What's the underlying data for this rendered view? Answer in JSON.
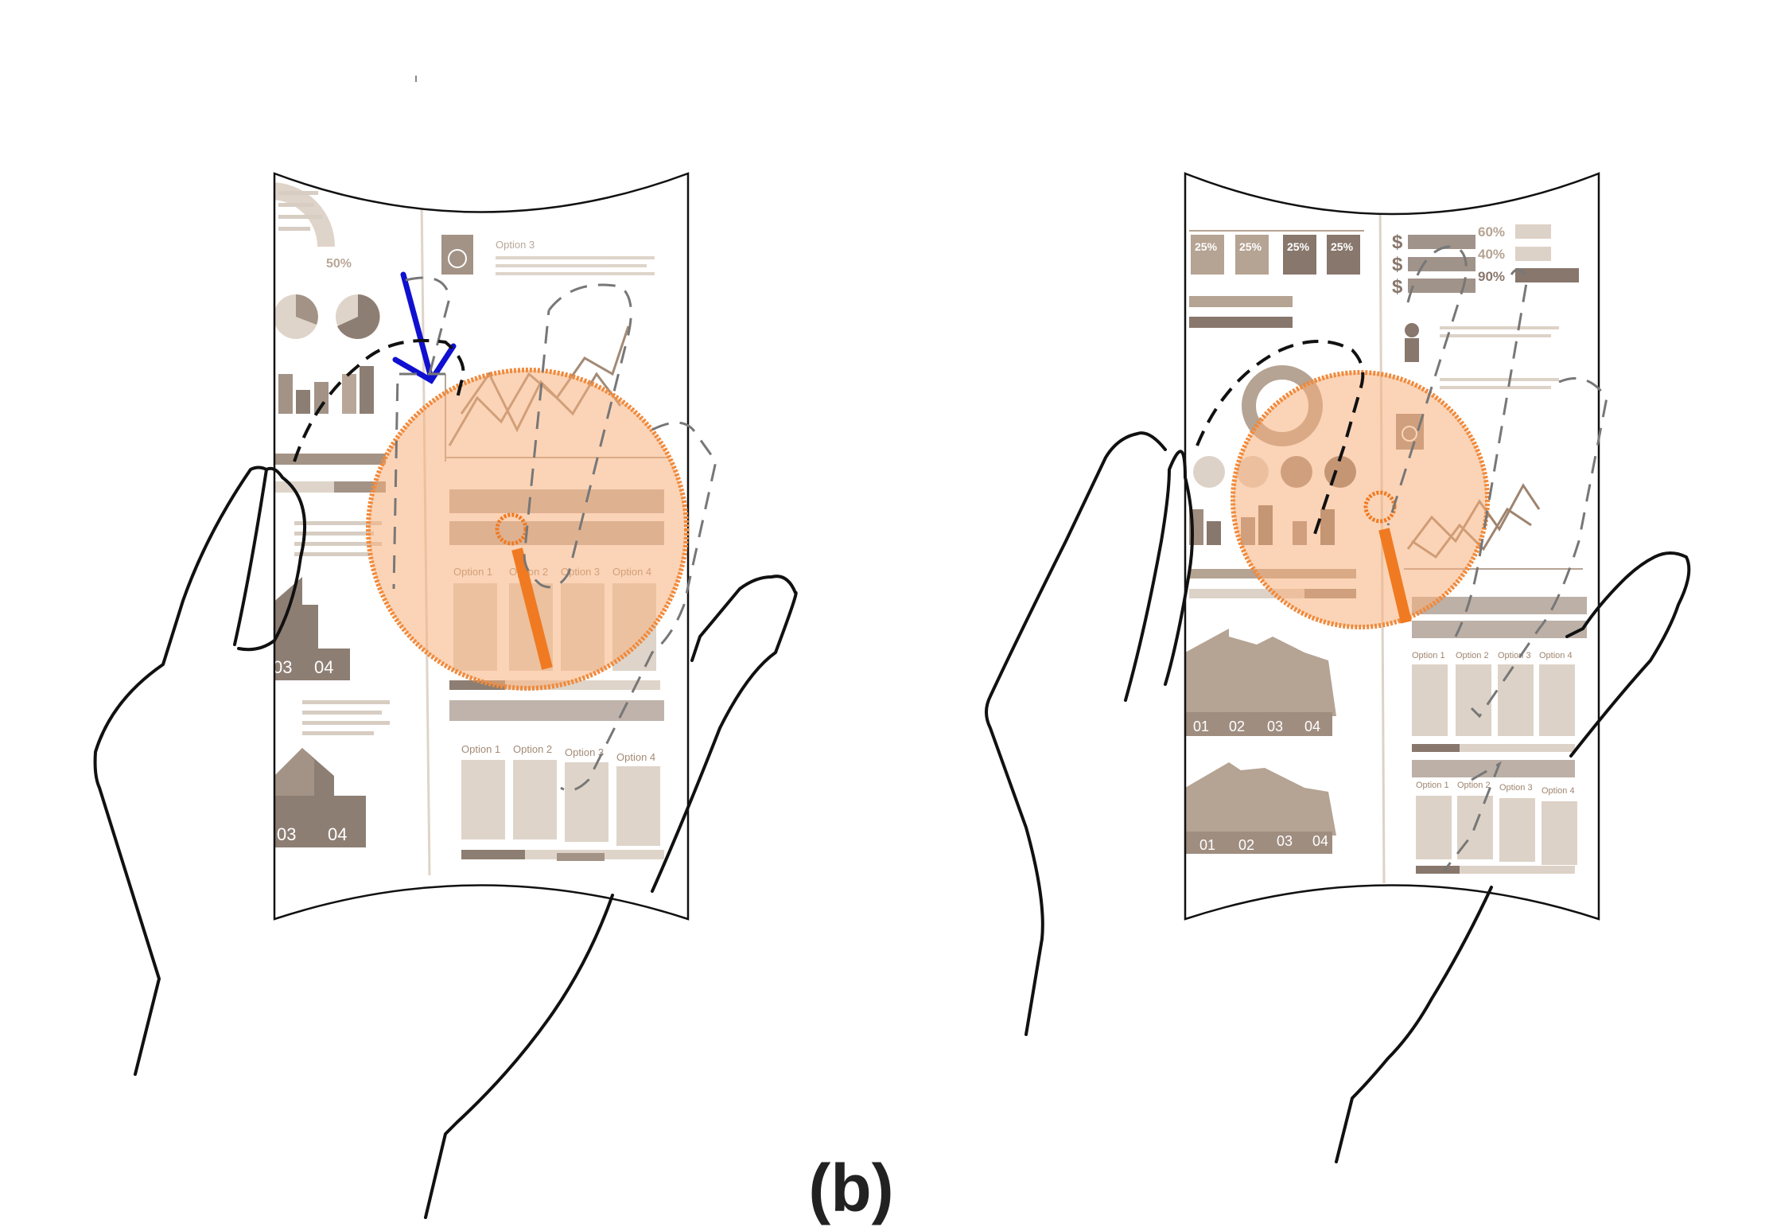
{
  "caption": "(b)",
  "colors": {
    "ink": "#111111",
    "lens": "#f7b07c",
    "lens_stroke": "#f08a3c",
    "handle": "#f07a22",
    "pointer_arrow": "#1010d0",
    "infographic_dark": "#6e5a4c",
    "infographic_mid": "#a58f7c",
    "infographic_light": "#d6c8bb"
  },
  "left_panel": {
    "percent_labels": [
      "50%"
    ],
    "options": [
      "Option 1",
      "Option 2",
      "Option 3",
      "Option 4"
    ],
    "house_numbers": [
      "03",
      "04"
    ],
    "icons": [
      "passport-icon",
      "pie-chart-icon",
      "line-chart-icon",
      "pointer-arrow-icon",
      "magnifier-icon"
    ]
  },
  "right_panel": {
    "percent_boxes": [
      "25%",
      "25%",
      "25%",
      "25%"
    ],
    "percent_bars": [
      "60%",
      "40%",
      "90%"
    ],
    "options": [
      "Option 1",
      "Option 2",
      "Option 3",
      "Option 4"
    ],
    "house_numbers": [
      "01",
      "02",
      "03",
      "04"
    ],
    "icons": [
      "dollar-icon",
      "people-icon",
      "person-icon",
      "passport-icon",
      "donut-chart-icon",
      "magnifier-icon"
    ]
  }
}
